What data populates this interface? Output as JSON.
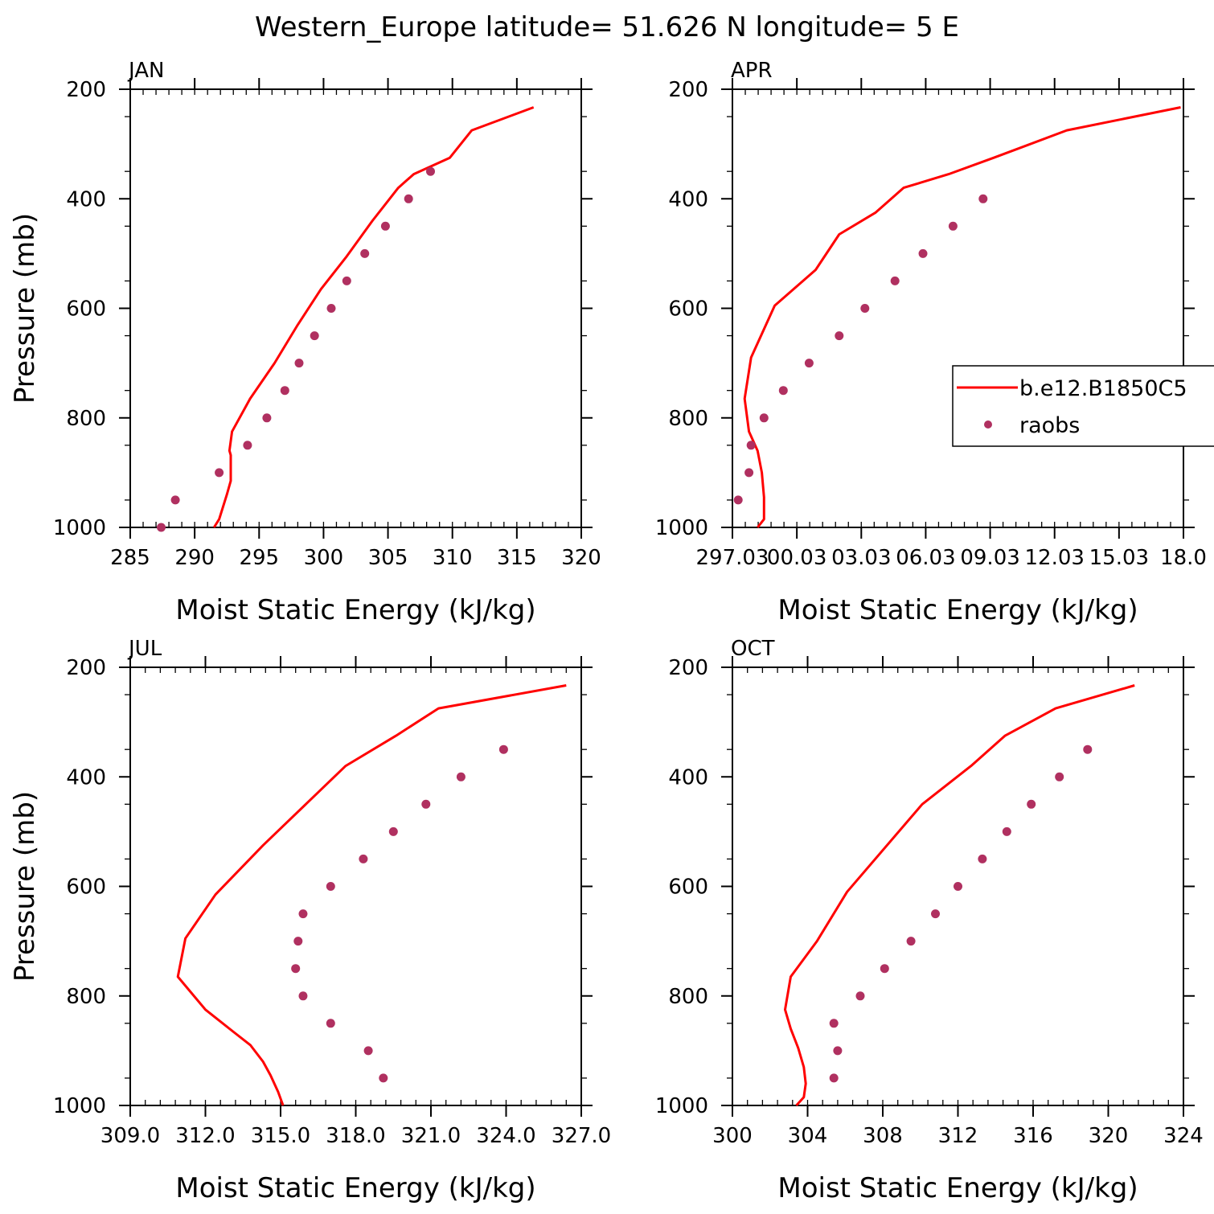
{
  "title": "Western_Europe  latitude= 51.626 N longitude= 5 E",
  "colors": {
    "model_line": "#ff0000",
    "raobs_marker": "#b03060",
    "axis": "#000000"
  },
  "legend": {
    "model_label": "b.e12.B1850C5",
    "obs_label": "raobs",
    "location": "right, over APR panel"
  },
  "chart_data": [
    {
      "type": "line+scatter",
      "panel_label": "JAN",
      "xlabel": "Moist Static Energy (kJ/kg)",
      "ylabel": "Pressure (mb)",
      "xlim": [
        285,
        320
      ],
      "ylim": [
        1000,
        200
      ],
      "y_inverted": true,
      "xticks": [
        285,
        290,
        295,
        300,
        305,
        310,
        315,
        320
      ],
      "xtick_labels": [
        "285",
        "290",
        "295",
        "300",
        "305",
        "310",
        "315",
        "320"
      ],
      "x_minor_step": 1,
      "yticks": [
        200,
        400,
        600,
        800,
        1000
      ],
      "ytick_labels": [
        "200",
        "400",
        "600",
        "800",
        "1000"
      ],
      "series": [
        {
          "name": "b.e12.B1850C5",
          "kind": "line",
          "x": [
            316.3,
            311.5,
            309.8,
            307.0,
            305.8,
            303.8,
            301.8,
            299.8,
            298.0,
            296.2,
            294.3,
            292.9,
            292.7,
            292.8,
            292.8,
            292.5,
            291.9,
            291.5
          ],
          "y": [
            233,
            275,
            325,
            355,
            380,
            440,
            505,
            565,
            630,
            700,
            765,
            825,
            860,
            868,
            915,
            940,
            985,
            1000
          ]
        },
        {
          "name": "raobs",
          "kind": "scatter",
          "x": [
            287.4,
            288.5,
            291.9,
            294.1,
            295.6,
            297.0,
            298.1,
            299.3,
            300.6,
            301.8,
            303.2,
            304.8,
            306.6,
            308.3
          ],
          "y": [
            1000,
            950,
            900,
            850,
            800,
            750,
            700,
            650,
            600,
            550,
            500,
            450,
            400,
            350
          ]
        }
      ]
    },
    {
      "type": "line+scatter",
      "panel_label": "APR",
      "xlabel": "Moist Static Energy (kJ/kg)",
      "ylabel": "",
      "xlim": [
        297.03,
        318.03
      ],
      "ylim": [
        1000,
        200
      ],
      "y_inverted": true,
      "xticks": [
        297.03,
        300.03,
        303.03,
        306.03,
        309.03,
        312.03,
        315.03,
        318.03
      ],
      "xtick_labels": [
        "297.03",
        "00.03",
        "03.03",
        "06.03",
        "09.03",
        "12.03",
        "15.03",
        "18.0"
      ],
      "x_minor_step": 0.6,
      "yticks": [
        200,
        400,
        600,
        800,
        1000
      ],
      "ytick_labels": [
        "200",
        "400",
        "600",
        "800",
        "1000"
      ],
      "series": [
        {
          "name": "b.e12.B1850C5",
          "kind": "line",
          "x": [
            317.9,
            312.6,
            309.2,
            307.1,
            305.0,
            303.7,
            302.0,
            300.9,
            299.0,
            297.9,
            297.6,
            297.8,
            298.2,
            298.4,
            298.5,
            298.5,
            298.2
          ],
          "y": [
            233,
            275,
            325,
            355,
            380,
            425,
            465,
            530,
            595,
            690,
            765,
            825,
            860,
            900,
            945,
            985,
            1000
          ]
        },
        {
          "name": "raobs",
          "kind": "scatter",
          "x": [
            297.3,
            297.8,
            297.9,
            298.5,
            299.4,
            300.6,
            302.0,
            303.2,
            304.6,
            305.9,
            307.3,
            308.7
          ],
          "y": [
            950,
            900,
            850,
            800,
            750,
            700,
            650,
            600,
            550,
            500,
            450,
            400
          ]
        }
      ]
    },
    {
      "type": "line+scatter",
      "panel_label": "JUL",
      "xlabel": "Moist Static Energy (kJ/kg)",
      "ylabel": "Pressure (mb)",
      "xlim": [
        309.0,
        327.0
      ],
      "ylim": [
        1000,
        200
      ],
      "y_inverted": true,
      "xticks": [
        309,
        312,
        315,
        318,
        321,
        324,
        327
      ],
      "xtick_labels": [
        "309.0",
        "312.0",
        "315.0",
        "318.0",
        "321.0",
        "324.0",
        "327.0"
      ],
      "x_minor_step": 0.6,
      "yticks": [
        200,
        400,
        600,
        800,
        1000
      ],
      "ytick_labels": [
        "200",
        "400",
        "600",
        "800",
        "1000"
      ],
      "series": [
        {
          "name": "b.e12.B1850C5",
          "kind": "line",
          "x": [
            326.4,
            321.3,
            319.6,
            317.6,
            314.3,
            312.4,
            311.2,
            310.9,
            312.0,
            313.1,
            313.8,
            314.3,
            314.6,
            314.9,
            315.1
          ],
          "y": [
            233,
            275,
            325,
            380,
            525,
            615,
            695,
            765,
            825,
            865,
            890,
            920,
            945,
            975,
            1000
          ]
        },
        {
          "name": "raobs",
          "kind": "scatter",
          "x": [
            319.1,
            318.5,
            317.0,
            315.9,
            315.6,
            315.7,
            315.9,
            317.0,
            318.3,
            319.5,
            320.8,
            322.2,
            323.9
          ],
          "y": [
            950,
            900,
            850,
            800,
            750,
            700,
            650,
            600,
            550,
            500,
            450,
            400,
            350
          ]
        }
      ]
    },
    {
      "type": "line+scatter",
      "panel_label": "OCT",
      "xlabel": "Moist Static Energy (kJ/kg)",
      "ylabel": "",
      "xlim": [
        300,
        324
      ],
      "ylim": [
        1000,
        200
      ],
      "y_inverted": true,
      "xticks": [
        300,
        304,
        308,
        312,
        316,
        320,
        324
      ],
      "xtick_labels": [
        "300",
        "304",
        "308",
        "312",
        "316",
        "320",
        "324"
      ],
      "x_minor_step": 0.8,
      "yticks": [
        200,
        400,
        600,
        800,
        1000
      ],
      "ytick_labels": [
        "200",
        "400",
        "600",
        "800",
        "1000"
      ],
      "series": [
        {
          "name": "b.e12.B1850C5",
          "kind": "line",
          "x": [
            321.4,
            317.2,
            314.5,
            312.7,
            310.1,
            306.1,
            304.5,
            303.1,
            302.8,
            303.1,
            303.5,
            303.8,
            303.9,
            303.8,
            303.4
          ],
          "y": [
            233,
            275,
            325,
            380,
            450,
            610,
            700,
            765,
            825,
            860,
            895,
            930,
            960,
            985,
            1000
          ]
        },
        {
          "name": "raobs",
          "kind": "scatter",
          "x": [
            305.4,
            305.6,
            305.4,
            306.8,
            308.1,
            309.5,
            310.8,
            312.0,
            313.3,
            314.6,
            315.9,
            317.4,
            318.9
          ],
          "y": [
            950,
            900,
            850,
            800,
            750,
            700,
            650,
            600,
            550,
            500,
            450,
            400,
            350
          ]
        }
      ]
    }
  ]
}
